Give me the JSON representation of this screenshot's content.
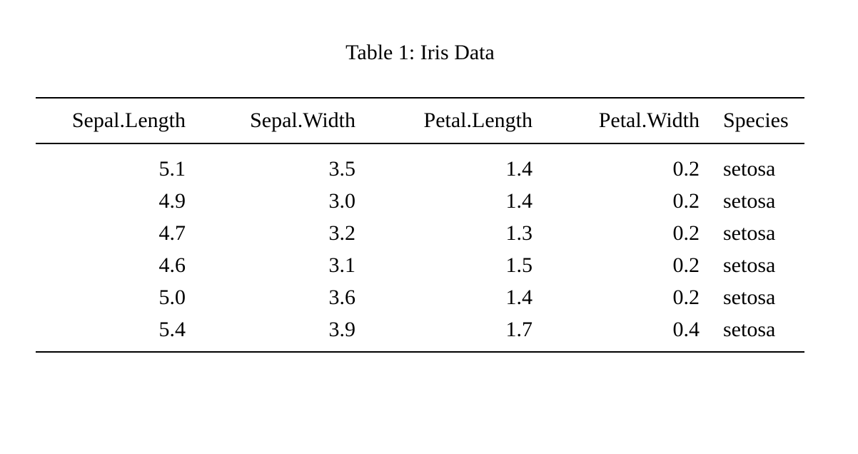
{
  "page": {
    "background_color": "#ffffff",
    "text_color": "#000000",
    "rule_color": "#000000"
  },
  "table": {
    "caption": "Table 1: Iris Data",
    "columns": [
      {
        "label": "Sepal.Length",
        "align": "right"
      },
      {
        "label": "Sepal.Width",
        "align": "right"
      },
      {
        "label": "Petal.Length",
        "align": "right"
      },
      {
        "label": "Petal.Width",
        "align": "right"
      },
      {
        "label": "Species",
        "align": "left"
      }
    ],
    "rows": [
      [
        "5.1",
        "3.5",
        "1.4",
        "0.2",
        "setosa"
      ],
      [
        "4.9",
        "3.0",
        "1.4",
        "0.2",
        "setosa"
      ],
      [
        "4.7",
        "3.2",
        "1.3",
        "0.2",
        "setosa"
      ],
      [
        "4.6",
        "3.1",
        "1.5",
        "0.2",
        "setosa"
      ],
      [
        "5.0",
        "3.6",
        "1.4",
        "0.2",
        "setosa"
      ],
      [
        "5.4",
        "3.9",
        "1.7",
        "0.4",
        "setosa"
      ]
    ]
  }
}
